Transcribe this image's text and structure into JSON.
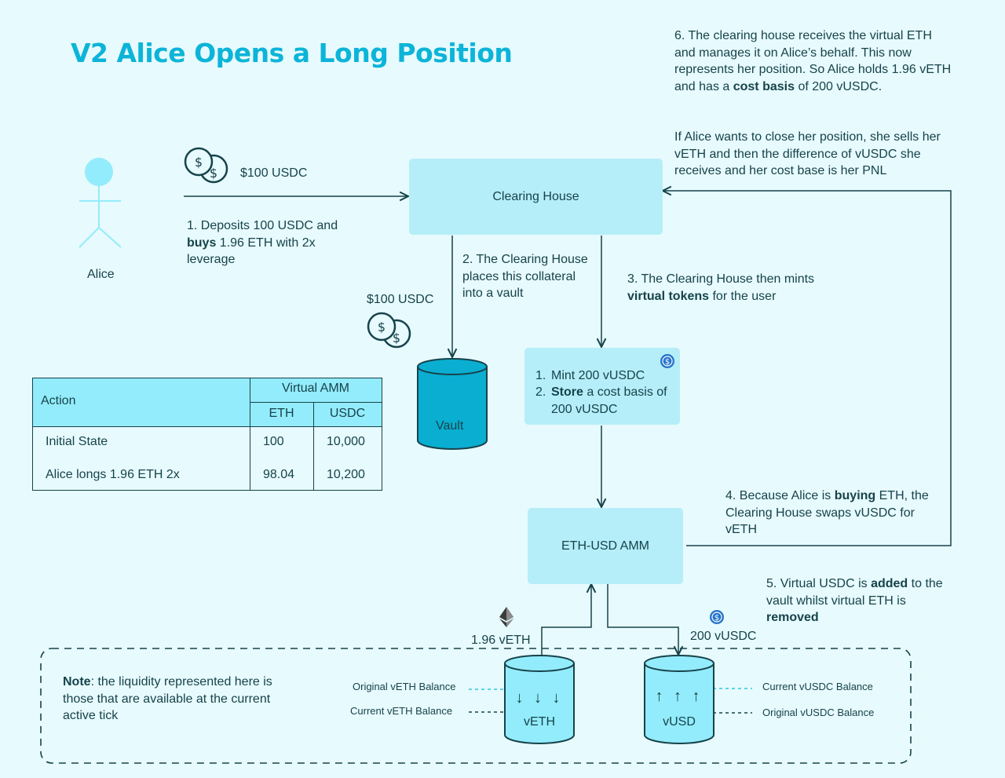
{
  "title": "V2 Alice Opens a Long Position",
  "alice": {
    "label": "Alice"
  },
  "deposit": {
    "amount": "$100 USDC",
    "step1_a": "1. Deposits 100 USDC and ",
    "step1_b": "buys",
    "step1_c": " 1.96 ETH with 2x leverage"
  },
  "clearing_house": {
    "label": "Clearing House"
  },
  "step2": "2. The Clearing House places this collateral into a vault",
  "vault": {
    "amount": "$100 USDC",
    "label": "Vault"
  },
  "step3": {
    "a": "3. The Clearing House then mints ",
    "b": "virtual tokens",
    "c": " for the user"
  },
  "mint_box": {
    "line1": "Mint 200 vUSDC",
    "line2_bold": "Store",
    "line2_rest": " a cost basis of 200 vUSDC",
    "num1": "1.",
    "num2": "2."
  },
  "step4": {
    "a": "4. Because Alice is ",
    "b": "buying",
    "c": " ETH, the Clearing House swaps vUSDC for vETH"
  },
  "amm": {
    "label": "ETH-USD AMM"
  },
  "step5": {
    "a": "5. Virtual USDC is ",
    "b": "added",
    "c": " to the vault whilst virtual ETH is ",
    "d": "removed"
  },
  "step6": {
    "a": "6. The clearing house receives the virtual ETH and manages it on Alice’s behalf. This now represents her position. So Alice holds 1.96 vETH and has a ",
    "b": "cost basis",
    "c": " of 200 vUSDC.",
    "p2": "If Alice wants to close her position, she sells her vETH and then the difference of vUSDC she receives and her cost base is her PNL"
  },
  "table": {
    "col_action": "Action",
    "col_group": "Virtual AMM",
    "col_eth": "ETH",
    "col_usdc": "USDC",
    "rows": [
      {
        "action": "Initial State",
        "eth": "100",
        "usdc": "10,000"
      },
      {
        "action": "Alice longs 1.96 ETH 2x",
        "eth": "98.04",
        "usdc": "10,200"
      }
    ]
  },
  "note": {
    "bold": "Note",
    "rest": ": the liquidity represented here is those that are available at the current active tick"
  },
  "veth_pool": {
    "amount": "1.96 vETH",
    "label": "vETH",
    "original_label": "Original vETH Balance",
    "current_label": "Current vETH Balance",
    "arrows": "↓ ↓ ↓"
  },
  "vusd_pool": {
    "amount": "200 vUSDC",
    "label": "vUSD",
    "current_label": "Current vUSDC Balance",
    "original_label": "Original vUSDC Balance",
    "arrows": "↑ ↑ ↑"
  },
  "colors": {
    "accent": "#0cb4d8",
    "box": "#b5eef8",
    "ink": "#16434b",
    "cylinder": "#0aaed1",
    "dotted": "#2ec6e0"
  }
}
